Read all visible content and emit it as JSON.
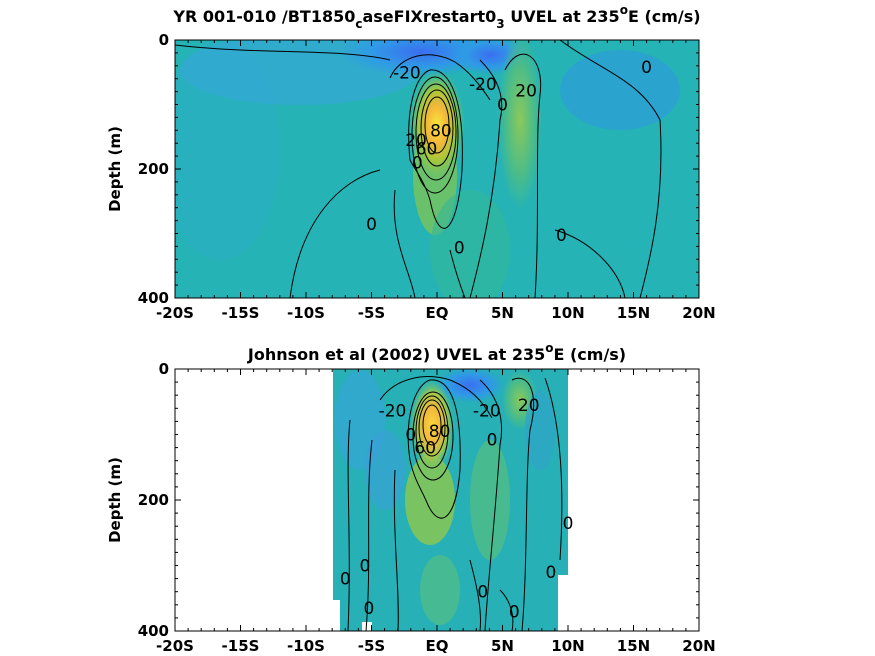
{
  "chart_data": [
    {
      "type": "heatmap",
      "title": "YR 001-010 /BT1850",
      "title_sub": "c",
      "title_mid": "aseFIXrestart0",
      "title_sub2": "3",
      "title_tail": " UVEL at 235",
      "title_sup": "o",
      "title_end": "E (cm/s)",
      "ylabel": "Depth (m)",
      "xlim": [
        -20,
        20
      ],
      "ylim": [
        0,
        400
      ],
      "y_reversed": true,
      "x_ticks": [
        -20,
        -15,
        -10,
        -5,
        0,
        5,
        10,
        15,
        20
      ],
      "x_tick_labels": [
        "-20S",
        "-15S",
        "-10S",
        "-5S",
        "EQ",
        "5N",
        "10N",
        "15N",
        "20N"
      ],
      "y_ticks": [
        0,
        200,
        400
      ],
      "y_tick_labels": [
        "0",
        "200",
        "400"
      ],
      "contour_labels": [
        {
          "x": -2.3,
          "y": 50,
          "text": "-20"
        },
        {
          "x": 3.5,
          "y": 68,
          "text": "-20"
        },
        {
          "x": 6.8,
          "y": 78,
          "text": "20"
        },
        {
          "x": 5.0,
          "y": 100,
          "text": "0"
        },
        {
          "x": 16.0,
          "y": 42,
          "text": "0"
        },
        {
          "x": 0.3,
          "y": 140,
          "text": "80"
        },
        {
          "x": -1.6,
          "y": 155,
          "text": "20"
        },
        {
          "x": -0.8,
          "y": 168,
          "text": "60"
        },
        {
          "x": -1.5,
          "y": 190,
          "text": "0"
        },
        {
          "x": -5.0,
          "y": 285,
          "text": "0"
        },
        {
          "x": 1.7,
          "y": 322,
          "text": "0"
        },
        {
          "x": 9.5,
          "y": 302,
          "text": "0"
        }
      ]
    },
    {
      "type": "heatmap",
      "title": "Johnson et al (2002) UVEL at 235",
      "title_sup": "o",
      "title_end": "E (cm/s)",
      "ylabel": "Depth (m)",
      "xlim": [
        -20,
        20
      ],
      "ylim": [
        0,
        400
      ],
      "y_reversed": true,
      "data_x_range": [
        -8,
        10
      ],
      "x_ticks": [
        -20,
        -15,
        -10,
        -5,
        0,
        5,
        10,
        15,
        20
      ],
      "x_tick_labels": [
        "-20S",
        "-15S",
        "-10S",
        "-5S",
        "EQ",
        "5N",
        "10N",
        "15N",
        "20N"
      ],
      "y_ticks": [
        0,
        200,
        400
      ],
      "y_tick_labels": [
        "0",
        "200",
        "400"
      ],
      "contour_labels": [
        {
          "x": -3.4,
          "y": 63,
          "text": "-20"
        },
        {
          "x": 3.8,
          "y": 63,
          "text": "-20"
        },
        {
          "x": 7.0,
          "y": 55,
          "text": "20"
        },
        {
          "x": 4.2,
          "y": 108,
          "text": "0"
        },
        {
          "x": -2.0,
          "y": 100,
          "text": "0"
        },
        {
          "x": -0.9,
          "y": 120,
          "text": "60"
        },
        {
          "x": 0.2,
          "y": 95,
          "text": "80"
        },
        {
          "x": 10.0,
          "y": 235,
          "text": "0"
        },
        {
          "x": -7.0,
          "y": 320,
          "text": "0"
        },
        {
          "x": -5.5,
          "y": 300,
          "text": "0"
        },
        {
          "x": 3.5,
          "y": 340,
          "text": "0"
        },
        {
          "x": 8.7,
          "y": 310,
          "text": "0"
        },
        {
          "x": -5.2,
          "y": 365,
          "text": "0"
        },
        {
          "x": 5.9,
          "y": 370,
          "text": "0"
        }
      ]
    }
  ]
}
